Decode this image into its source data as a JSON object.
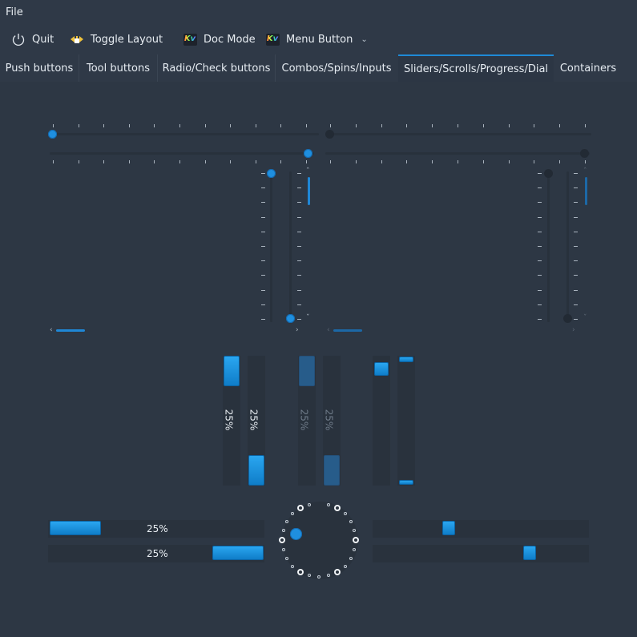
{
  "menubar": {
    "file": "File"
  },
  "toolbar": {
    "quit": "Quit",
    "toggle_layout": "Toggle Layout",
    "doc_mode": "Doc Mode",
    "menu_button": "Menu Button",
    "kv_logo": "Kv"
  },
  "tabs": [
    "Push buttons",
    "Tool buttons",
    "Radio/Check buttons",
    "Combos/Spins/Inputs",
    "Sliders/Scrolls/Progress/Dial",
    "Containers"
  ],
  "active_tab": "Sliders/Scrolls/Progress/Dial",
  "progress": {
    "value_percent": 25,
    "label": "25%"
  },
  "sliders": {
    "horizontal_enabled_value_percent": 0,
    "horizontal_disabled_value_percent": 0
  },
  "colors": {
    "accent": "#1f8fdf",
    "background": "#2f3947"
  }
}
